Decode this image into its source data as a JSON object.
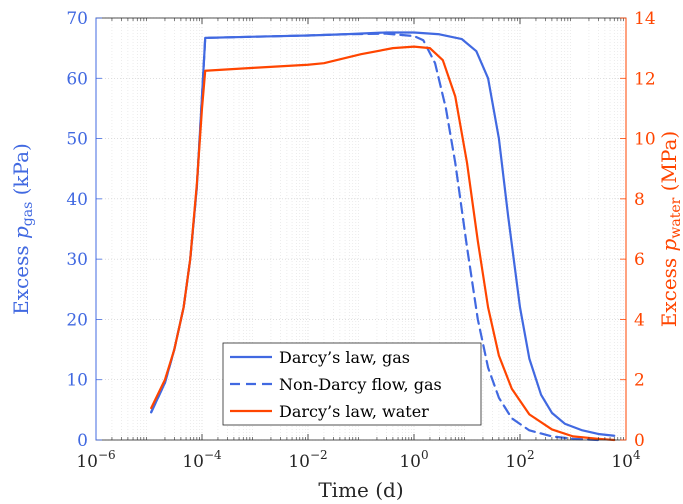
{
  "chart_data": {
    "type": "line",
    "xlabel": "Time (d)",
    "ylabel_left": "Excess p_gas (kPa)",
    "ylabel_left_parts": {
      "pre": "Excess ",
      "var": "p",
      "sub": "gas",
      "post": " (kPa)"
    },
    "ylabel_right": "Excess p_water (MPa)",
    "ylabel_right_parts": {
      "pre": "Excess ",
      "var": "p",
      "sub": "water",
      "post": " (MPa)"
    },
    "x_scale": "log",
    "xlim": [
      1e-06,
      10000.0
    ],
    "ylim_left": [
      0,
      70
    ],
    "ylim_right": [
      0,
      14
    ],
    "x_ticks": [
      {
        "value": 1e-06,
        "base": "10",
        "exp": "−6"
      },
      {
        "value": 0.0001,
        "base": "10",
        "exp": "−4"
      },
      {
        "value": 0.01,
        "base": "10",
        "exp": "−2"
      },
      {
        "value": 1.0,
        "base": "10",
        "exp": "0"
      },
      {
        "value": 100.0,
        "base": "10",
        "exp": "2"
      },
      {
        "value": 10000.0,
        "base": "10",
        "exp": "4"
      }
    ],
    "y_ticks_left": [
      "0",
      "10",
      "20",
      "30",
      "40",
      "50",
      "60",
      "70"
    ],
    "y_ticks_right": [
      "0",
      "2",
      "4",
      "6",
      "8",
      "10",
      "12",
      "14"
    ],
    "grid": true,
    "legend_position": "bottom-center",
    "colors": {
      "gas": "#4169e1",
      "water": "#ff4500",
      "axis_left": "#4169e1",
      "axis_right": "#ff4500"
    },
    "series": [
      {
        "name": "Darcy’s law, gas",
        "axis": "left",
        "color": "#4169e1",
        "dash": "solid",
        "points": [
          [
            1.1e-05,
            4.6
          ],
          [
            2e-05,
            9.5
          ],
          [
            3e-05,
            15
          ],
          [
            4.5e-05,
            22
          ],
          [
            6e-05,
            30
          ],
          [
            8e-05,
            42
          ],
          [
            0.0001,
            57
          ],
          [
            0.000115,
            66.7
          ],
          [
            0.001,
            66.9
          ],
          [
            0.01,
            67.1
          ],
          [
            0.05,
            67.3
          ],
          [
            0.3,
            67.6
          ],
          [
            1,
            67.6
          ],
          [
            3,
            67.3
          ],
          [
            8,
            66.5
          ],
          [
            15,
            64.5
          ],
          [
            25,
            60
          ],
          [
            40,
            50
          ],
          [
            60,
            37
          ],
          [
            100,
            22
          ],
          [
            150,
            13.5
          ],
          [
            250,
            7.5
          ],
          [
            400,
            4.5
          ],
          [
            700,
            2.7
          ],
          [
            1500,
            1.6
          ],
          [
            3000,
            1.0
          ],
          [
            6000,
            0.7
          ]
        ]
      },
      {
        "name": "Non-Darcy flow, gas",
        "axis": "left",
        "color": "#4169e1",
        "dash": "dashed",
        "points": [
          [
            1.1e-05,
            4.6
          ],
          [
            2e-05,
            9.5
          ],
          [
            3e-05,
            15
          ],
          [
            4.5e-05,
            22
          ],
          [
            6e-05,
            30
          ],
          [
            8e-05,
            42
          ],
          [
            0.0001,
            57
          ],
          [
            0.000115,
            66.7
          ],
          [
            0.001,
            66.9
          ],
          [
            0.01,
            67.1
          ],
          [
            0.05,
            67.3
          ],
          [
            0.3,
            67.4
          ],
          [
            1,
            67.0
          ],
          [
            1.5,
            66.3
          ],
          [
            2.5,
            62.5
          ],
          [
            4,
            55
          ],
          [
            6,
            46
          ],
          [
            10,
            32
          ],
          [
            16,
            20
          ],
          [
            25,
            12
          ],
          [
            40,
            7
          ],
          [
            70,
            3.6
          ],
          [
            150,
            1.6
          ],
          [
            400,
            0.6
          ],
          [
            1000,
            0.2
          ],
          [
            3000,
            0.0
          ]
        ]
      },
      {
        "name": "Darcy’s law, water",
        "axis": "right",
        "color": "#ff4500",
        "dash": "solid",
        "points": [
          [
            1.1e-05,
            1.06
          ],
          [
            2e-05,
            2.0
          ],
          [
            3e-05,
            3.0
          ],
          [
            4.5e-05,
            4.4
          ],
          [
            6e-05,
            6.0
          ],
          [
            8e-05,
            8.5
          ],
          [
            0.0001,
            11.0
          ],
          [
            0.000115,
            12.25
          ],
          [
            0.001,
            12.35
          ],
          [
            0.01,
            12.45
          ],
          [
            0.02,
            12.5
          ],
          [
            0.1,
            12.8
          ],
          [
            0.4,
            13.0
          ],
          [
            1,
            13.05
          ],
          [
            2,
            13.0
          ],
          [
            3.5,
            12.6
          ],
          [
            6,
            11.4
          ],
          [
            10,
            9.2
          ],
          [
            16,
            6.6
          ],
          [
            25,
            4.4
          ],
          [
            40,
            2.8
          ],
          [
            70,
            1.7
          ],
          [
            150,
            0.85
          ],
          [
            400,
            0.35
          ],
          [
            1000,
            0.12
          ],
          [
            3000,
            0.04
          ],
          [
            6000,
            0.0
          ]
        ]
      }
    ]
  }
}
